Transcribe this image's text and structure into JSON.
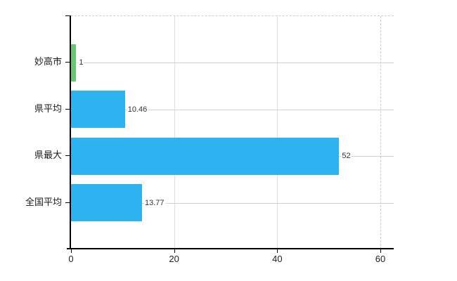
{
  "chart_data": {
    "type": "bar",
    "orientation": "horizontal",
    "title": "",
    "xlabel": "",
    "ylabel": "",
    "categories": [
      "妙高市",
      "県平均",
      "県最大",
      "全国平均"
    ],
    "values": [
      1,
      10.46,
      52,
      13.77
    ],
    "value_labels": [
      "1",
      "10.46",
      "52",
      "13.77"
    ],
    "bar_colors": [
      "#65c873",
      "#2db4f0",
      "#2db4f0",
      "#2db4f0"
    ],
    "x_ticks": [
      0,
      20,
      40,
      60
    ],
    "x_tick_labels": [
      "0",
      "20",
      "40",
      "60"
    ],
    "xlim": [
      0,
      60
    ],
    "grid": true,
    "legend": false
  },
  "colors": {
    "bar_blue": "#2db4f0",
    "bar_green": "#65c873",
    "axis": "#000000",
    "hgrid": "#ccd6cb",
    "vgrid": "#dedede",
    "background": "#ffffff"
  }
}
